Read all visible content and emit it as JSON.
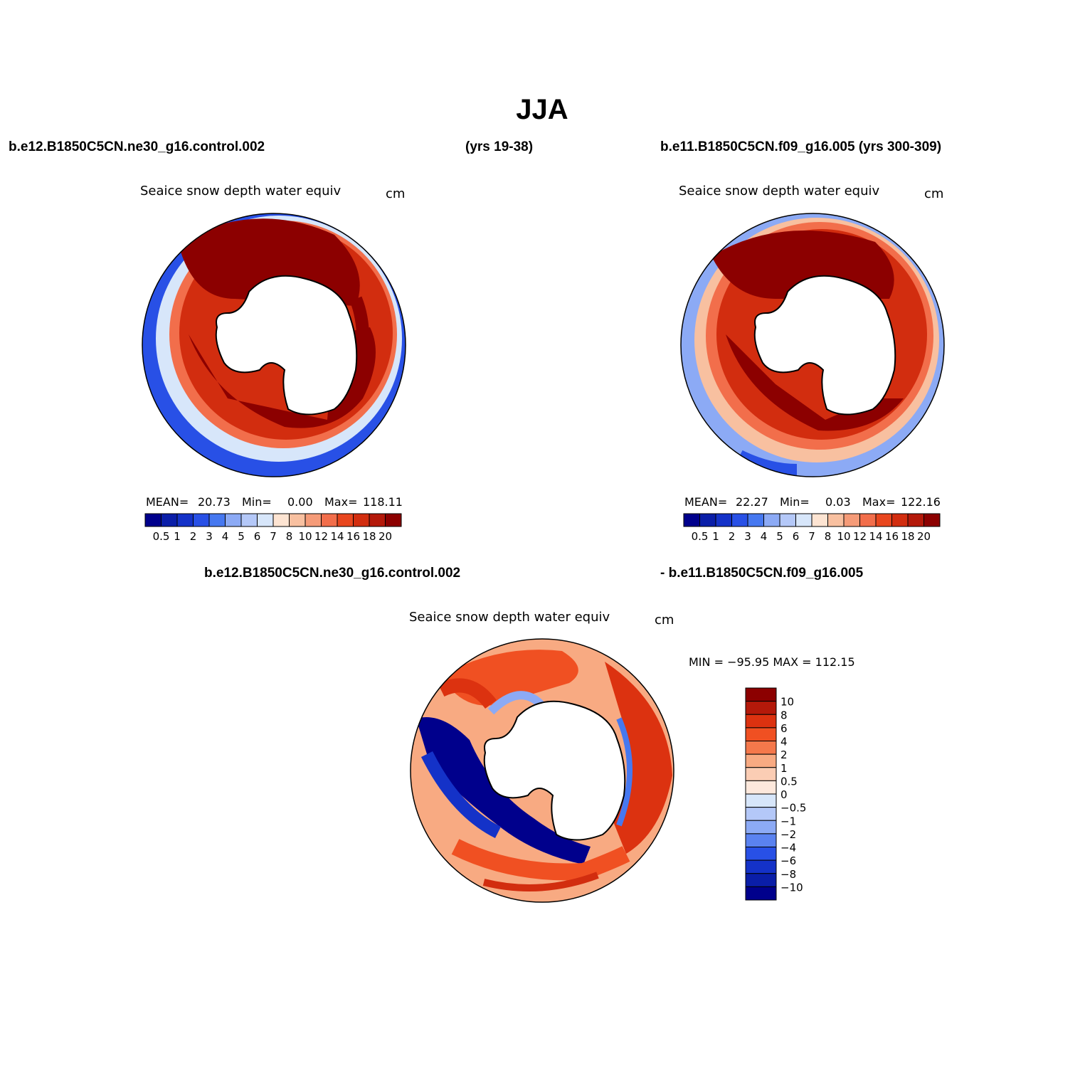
{
  "figure": {
    "title": "JJA",
    "header_left": "b.e12.B1850C5CN.ne30_g16.control.002",
    "header_mid": "(yrs 19-38)",
    "header_right": "b.e11.B1850C5CN.f09_g16.005 (yrs 300-309)",
    "diff_label_left": "b.e12.B1850C5CN.ne30_g16.control.002",
    "diff_label_right": "- b.e11.B1850C5CN.f09_g16.005"
  },
  "panels": [
    {
      "variable": "Seaice snow depth water equiv",
      "units": "cm",
      "stats": {
        "mean_label": "MEAN=",
        "mean": "20.73",
        "min_label": "Min=",
        "min": "0.00",
        "max_label": "Max=",
        "max": "118.11"
      }
    },
    {
      "variable": "Seaice snow depth water equiv",
      "units": "cm",
      "stats": {
        "mean_label": "MEAN=",
        "mean": "22.27",
        "min_label": "Min=",
        "min": "0.03",
        "max_label": "Max=",
        "max": "122.16"
      }
    },
    {
      "variable": "Seaice snow depth water equiv",
      "units": "cm",
      "stats_text": "MIN = −95.95 MAX = 112.15"
    }
  ],
  "abs_colorbar": {
    "colors": [
      "#00008c",
      "#0a1ea8",
      "#1432c8",
      "#2850e6",
      "#4678f0",
      "#8caaf5",
      "#b4c8f8",
      "#d7e6fa",
      "#fde4d2",
      "#f8c0a0",
      "#f59b78",
      "#f26e4b",
      "#e8461e",
      "#d22d0f",
      "#b4190a",
      "#8c0000"
    ],
    "tick_labels": [
      "0.5",
      "1",
      "2",
      "3",
      "4",
      "5",
      "6",
      "7",
      "8",
      "10",
      "12",
      "14",
      "16",
      "18",
      "20"
    ]
  },
  "diff_colorbar": {
    "colors": [
      "#8c0000",
      "#b4190a",
      "#dc3210",
      "#f05022",
      "#f5784b",
      "#f8aa82",
      "#fbcdb4",
      "#fde8dc",
      "#d7e6fa",
      "#b4c8f8",
      "#8caaf5",
      "#5a82f0",
      "#2850e6",
      "#1432c8",
      "#0a1ea8",
      "#00008c"
    ],
    "tick_labels": [
      "10",
      "8",
      "6",
      "4",
      "2",
      "1",
      "0.5",
      "0",
      "−0.5",
      "−1",
      "−2",
      "−4",
      "−6",
      "−8",
      "−10"
    ]
  }
}
